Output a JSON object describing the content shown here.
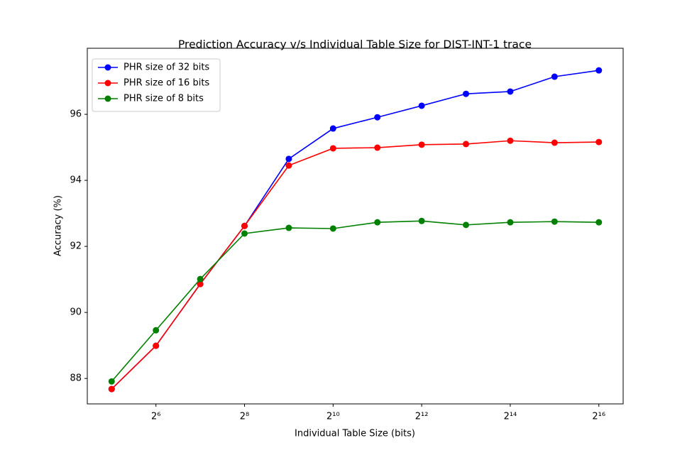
{
  "chart_data": {
    "type": "line",
    "title": "Prediction Accuracy v/s Individual Table Size for DIST-INT-1 trace",
    "x_label": "Individual Table Size (bits)",
    "y_label": "Accuracy (%)",
    "x": [
      32,
      64,
      128,
      256,
      512,
      1024,
      2048,
      4096,
      8192,
      16384,
      32768,
      65536
    ],
    "x_scale": "log2",
    "series": [
      {
        "name": "PHR size of 32 bits",
        "color": "#0000ff",
        "values": [
          87.68,
          88.99,
          90.86,
          92.62,
          94.65,
          95.57,
          95.91,
          96.26,
          96.62,
          96.69,
          97.14,
          97.33
        ]
      },
      {
        "name": "PHR size of 16 bits",
        "color": "#ff0000",
        "values": [
          87.68,
          88.99,
          90.86,
          92.62,
          94.45,
          94.97,
          94.99,
          95.08,
          95.1,
          95.2,
          95.14,
          95.16
        ]
      },
      {
        "name": "PHR size of 8 bits",
        "color": "#008000",
        "values": [
          87.91,
          89.46,
          91.01,
          92.39,
          92.56,
          92.54,
          92.73,
          92.77,
          92.65,
          92.73,
          92.75,
          92.73
        ]
      }
    ],
    "xlim": [
      21.86,
      95870
    ],
    "xticks": [
      {
        "value": 64,
        "label": "2⁶"
      },
      {
        "value": 256,
        "label": "2⁸"
      },
      {
        "value": 1024,
        "label": "2¹⁰"
      },
      {
        "value": 4096,
        "label": "2¹²"
      },
      {
        "value": 16384,
        "label": "2¹⁴"
      },
      {
        "value": 65536,
        "label": "2¹⁶"
      }
    ],
    "ylim": [
      87.23,
      98.0
    ],
    "yticks": [
      88,
      90,
      92,
      94,
      96
    ],
    "legend": "upper left",
    "grid": false
  }
}
